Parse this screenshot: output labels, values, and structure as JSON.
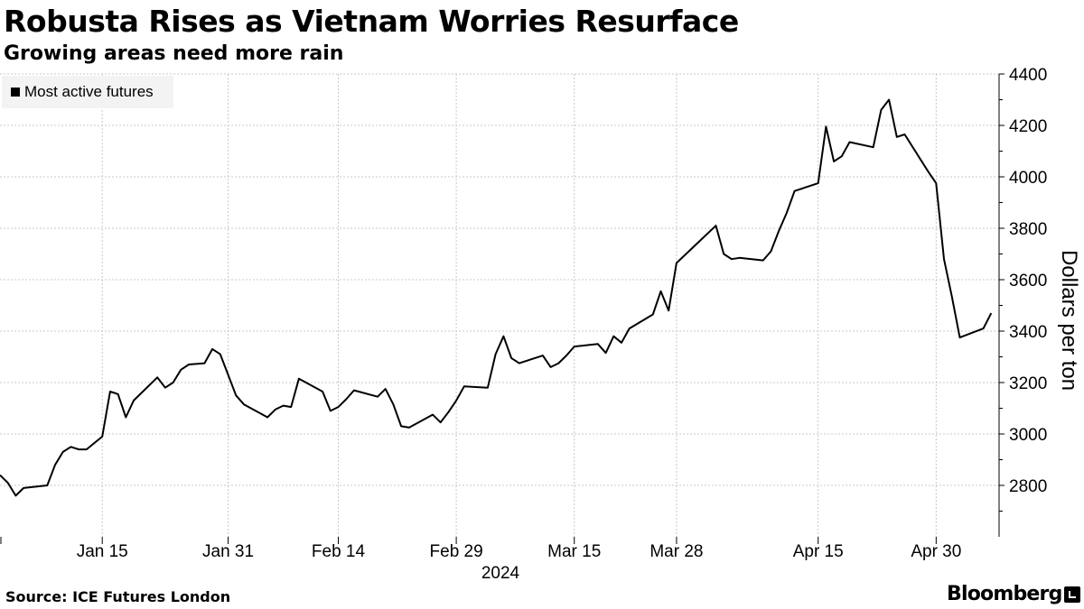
{
  "header": {
    "title": "Robusta Rises as Vietnam Worries Resurface",
    "subtitle": "Growing areas need more rain"
  },
  "footer": {
    "source": "Source: ICE Futures London",
    "brand": "Bloomberg"
  },
  "chart_data": {
    "type": "line",
    "title": "Robusta Rises as Vietnam Worries Resurface",
    "subtitle": "Growing areas need more rain",
    "xlabel": "",
    "ylabel": "Dollars per ton",
    "year_label": "2024",
    "ylim": [
      2600,
      4400
    ],
    "y_ticks": [
      2800,
      3000,
      3200,
      3400,
      3600,
      3800,
      4000,
      4200,
      4400
    ],
    "y_axis_side": "right",
    "xlim": [
      "2024-01-02",
      "2024-05-08"
    ],
    "x_ticks": [
      {
        "date": "2024-01-15",
        "label": "Jan 15"
      },
      {
        "date": "2024-01-31",
        "label": "Jan 31"
      },
      {
        "date": "2024-02-14",
        "label": "Feb 14"
      },
      {
        "date": "2024-02-29",
        "label": "Feb 29"
      },
      {
        "date": "2024-03-15",
        "label": "Mar 15"
      },
      {
        "date": "2024-03-28",
        "label": "Mar 28"
      },
      {
        "date": "2024-04-15",
        "label": "Apr 15"
      },
      {
        "date": "2024-04-30",
        "label": "Apr 30"
      }
    ],
    "grid": true,
    "legend_position": "top-left",
    "series": [
      {
        "name": "Most active futures",
        "color": "#000000",
        "points": [
          [
            "2024-01-02",
            2840
          ],
          [
            "2024-01-03",
            2810
          ],
          [
            "2024-01-04",
            2760
          ],
          [
            "2024-01-05",
            2790
          ],
          [
            "2024-01-08",
            2800
          ],
          [
            "2024-01-09",
            2880
          ],
          [
            "2024-01-10",
            2930
          ],
          [
            "2024-01-11",
            2950
          ],
          [
            "2024-01-12",
            2940
          ],
          [
            "2024-01-13",
            2940
          ],
          [
            "2024-01-15",
            2990
          ],
          [
            "2024-01-16",
            3165
          ],
          [
            "2024-01-17",
            3155
          ],
          [
            "2024-01-18",
            3065
          ],
          [
            "2024-01-19",
            3130
          ],
          [
            "2024-01-22",
            3220
          ],
          [
            "2024-01-23",
            3180
          ],
          [
            "2024-01-24",
            3200
          ],
          [
            "2024-01-25",
            3250
          ],
          [
            "2024-01-26",
            3270
          ],
          [
            "2024-01-28",
            3275
          ],
          [
            "2024-01-29",
            3330
          ],
          [
            "2024-01-30",
            3310
          ],
          [
            "2024-02-01",
            3150
          ],
          [
            "2024-02-02",
            3115
          ],
          [
            "2024-02-05",
            3065
          ],
          [
            "2024-02-06",
            3095
          ],
          [
            "2024-02-07",
            3110
          ],
          [
            "2024-02-08",
            3105
          ],
          [
            "2024-02-09",
            3215
          ],
          [
            "2024-02-12",
            3165
          ],
          [
            "2024-02-13",
            3090
          ],
          [
            "2024-02-14",
            3105
          ],
          [
            "2024-02-15",
            3135
          ],
          [
            "2024-02-16",
            3170
          ],
          [
            "2024-02-19",
            3145
          ],
          [
            "2024-02-20",
            3175
          ],
          [
            "2024-02-21",
            3115
          ],
          [
            "2024-02-22",
            3030
          ],
          [
            "2024-02-23",
            3025
          ],
          [
            "2024-02-26",
            3075
          ],
          [
            "2024-02-27",
            3045
          ],
          [
            "2024-02-28",
            3085
          ],
          [
            "2024-02-29",
            3130
          ],
          [
            "2024-03-01",
            3185
          ],
          [
            "2024-03-04",
            3180
          ],
          [
            "2024-03-05",
            3310
          ],
          [
            "2024-03-06",
            3380
          ],
          [
            "2024-03-07",
            3295
          ],
          [
            "2024-03-08",
            3275
          ],
          [
            "2024-03-11",
            3305
          ],
          [
            "2024-03-12",
            3260
          ],
          [
            "2024-03-13",
            3275
          ],
          [
            "2024-03-14",
            3305
          ],
          [
            "2024-03-15",
            3340
          ],
          [
            "2024-03-18",
            3350
          ],
          [
            "2024-03-19",
            3315
          ],
          [
            "2024-03-20",
            3380
          ],
          [
            "2024-03-21",
            3355
          ],
          [
            "2024-03-22",
            3410
          ],
          [
            "2024-03-25",
            3465
          ],
          [
            "2024-03-26",
            3555
          ],
          [
            "2024-03-27",
            3480
          ],
          [
            "2024-03-28",
            3665
          ],
          [
            "2024-04-02",
            3810
          ],
          [
            "2024-04-03",
            3700
          ],
          [
            "2024-04-04",
            3680
          ],
          [
            "2024-04-05",
            3685
          ],
          [
            "2024-04-08",
            3675
          ],
          [
            "2024-04-09",
            3710
          ],
          [
            "2024-04-10",
            3790
          ],
          [
            "2024-04-11",
            3860
          ],
          [
            "2024-04-12",
            3945
          ],
          [
            "2024-04-15",
            3975
          ],
          [
            "2024-04-16",
            4195
          ],
          [
            "2024-04-17",
            4060
          ],
          [
            "2024-04-18",
            4080
          ],
          [
            "2024-04-19",
            4135
          ],
          [
            "2024-04-22",
            4115
          ],
          [
            "2024-04-23",
            4260
          ],
          [
            "2024-04-24",
            4300
          ],
          [
            "2024-04-25",
            4155
          ],
          [
            "2024-04-26",
            4165
          ],
          [
            "2024-04-29",
            4020
          ],
          [
            "2024-04-30",
            3975
          ],
          [
            "2024-05-01",
            3680
          ],
          [
            "2024-05-02",
            3535
          ],
          [
            "2024-05-03",
            3375
          ],
          [
            "2024-05-06",
            3410
          ],
          [
            "2024-05-07",
            3470
          ]
        ]
      }
    ]
  }
}
